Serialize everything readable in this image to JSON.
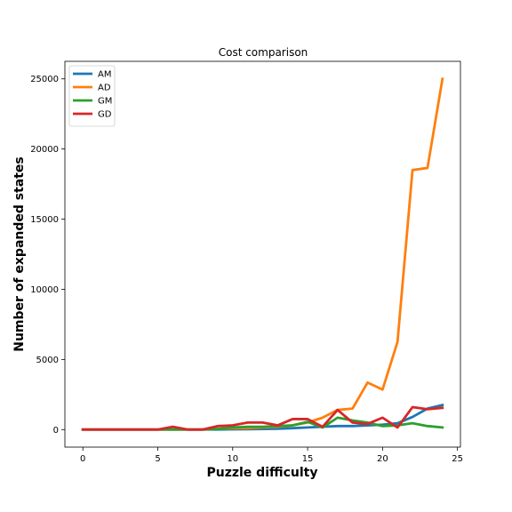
{
  "chart_data": {
    "type": "line",
    "title": "Cost comparison",
    "xlabel": "Puzzle difficulty",
    "ylabel": "Number of expanded states",
    "xlim": [
      -1.2,
      25.2
    ],
    "ylim": [
      -1250,
      26250
    ],
    "xticks": [
      0,
      5,
      10,
      15,
      20,
      25
    ],
    "yticks": [
      0,
      5000,
      10000,
      15000,
      20000,
      25000
    ],
    "grid": false,
    "legend": "top-left",
    "x": [
      0,
      1,
      2,
      3,
      4,
      5,
      6,
      7,
      8,
      9,
      10,
      11,
      12,
      13,
      14,
      15,
      16,
      17,
      18,
      19,
      20,
      21,
      22,
      23,
      24
    ],
    "series": [
      {
        "name": "AM",
        "color": "#1f77b4",
        "values": [
          0,
          0,
          0,
          0,
          0,
          0,
          0,
          0,
          0,
          0,
          20,
          30,
          40,
          60,
          100,
          150,
          200,
          250,
          250,
          300,
          350,
          450,
          900,
          1500,
          1750
        ]
      },
      {
        "name": "AD",
        "color": "#ff7f0e",
        "values": [
          0,
          0,
          0,
          0,
          0,
          0,
          0,
          0,
          0,
          50,
          100,
          100,
          150,
          200,
          300,
          500,
          850,
          1400,
          1500,
          3350,
          2850,
          6250,
          18500,
          18650,
          25000
        ]
      },
      {
        "name": "GM",
        "color": "#2ca02c",
        "values": [
          0,
          0,
          0,
          0,
          0,
          0,
          0,
          0,
          0,
          50,
          150,
          200,
          200,
          250,
          300,
          550,
          150,
          850,
          650,
          500,
          250,
          300,
          450,
          250,
          150
        ]
      },
      {
        "name": "GD",
        "color": "#d62728",
        "values": [
          0,
          0,
          0,
          0,
          0,
          0,
          200,
          0,
          0,
          250,
          300,
          500,
          500,
          300,
          750,
          750,
          200,
          1400,
          500,
          400,
          850,
          150,
          1600,
          1450,
          1550
        ]
      }
    ]
  }
}
